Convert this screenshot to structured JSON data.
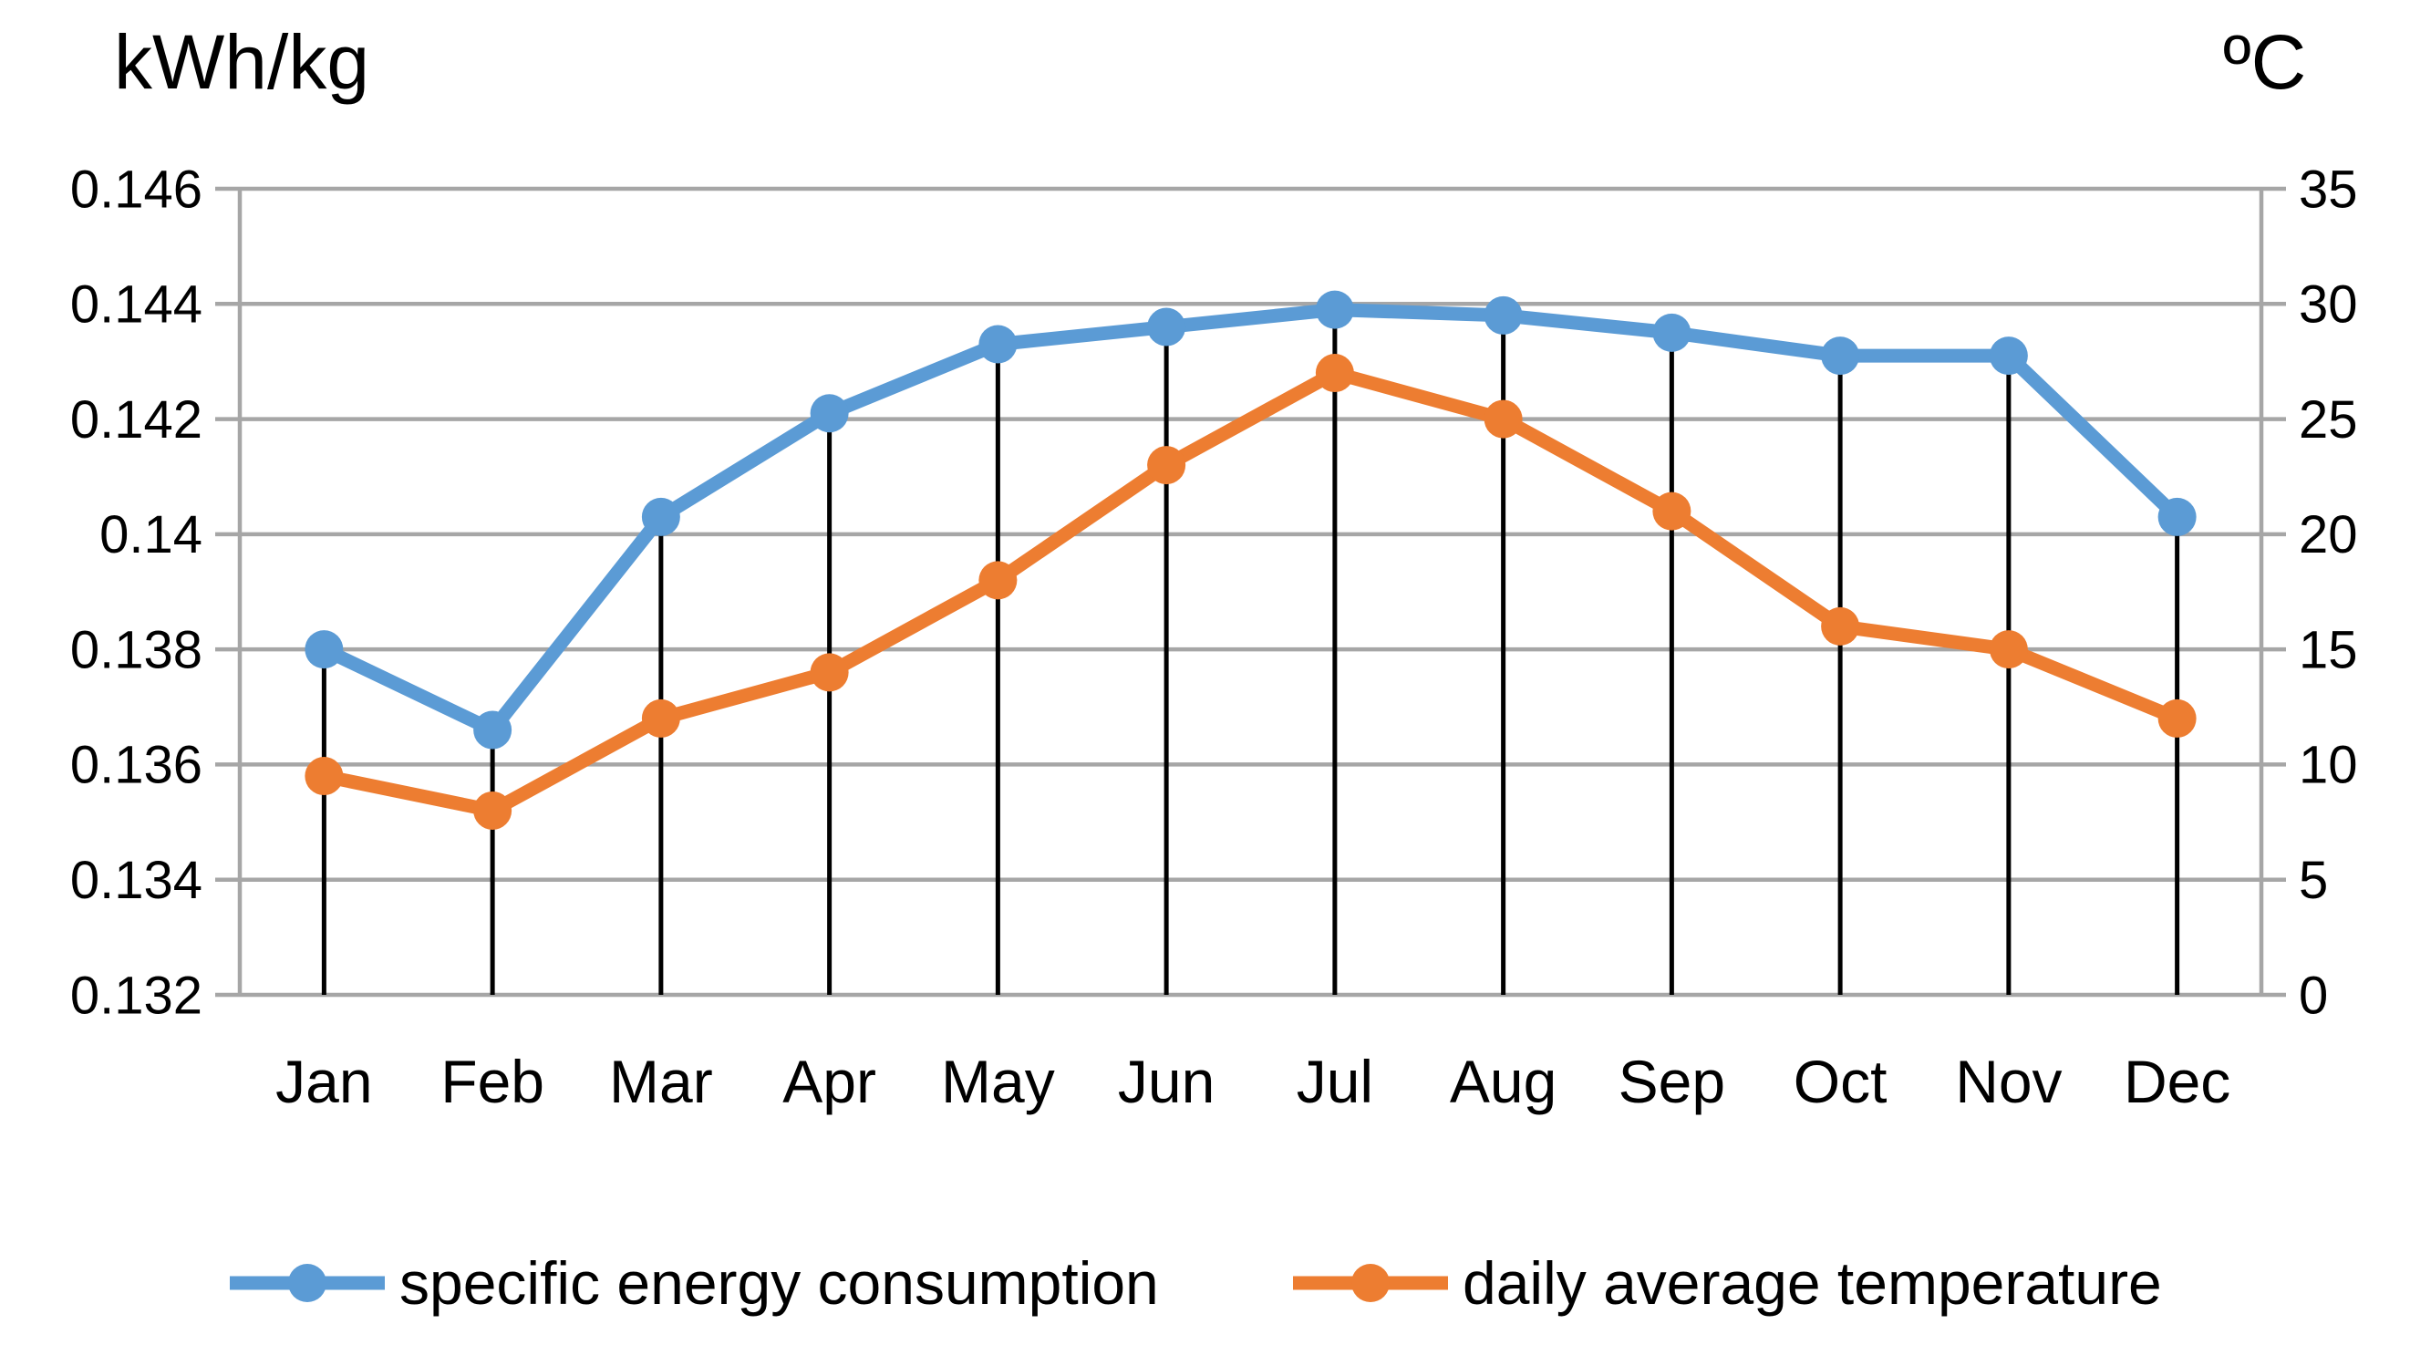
{
  "chart_data": {
    "type": "line",
    "categories": [
      "Jan",
      "Feb",
      "Mar",
      "Apr",
      "May",
      "Jun",
      "Jul",
      "Aug",
      "Sep",
      "Oct",
      "Nov",
      "Dec"
    ],
    "series": [
      {
        "name": "specific energy consumption",
        "axis": "left",
        "color": "#5B9BD5",
        "marker": "circle",
        "values": [
          0.138,
          0.1366,
          0.1403,
          0.1421,
          0.1433,
          0.1436,
          0.1439,
          0.1438,
          0.1435,
          0.1431,
          0.1431,
          0.1403
        ]
      },
      {
        "name": "daily average temperature",
        "axis": "right",
        "color": "#ED7D31",
        "marker": "circle",
        "values": [
          9.5,
          8,
          12,
          14,
          18,
          23,
          27,
          25,
          21,
          16,
          15,
          12
        ]
      }
    ],
    "left_axis": {
      "title": "kWh/kg",
      "min": 0.132,
      "max": 0.146,
      "step": 0.002,
      "tick_labels": [
        "0.146",
        "0.144",
        "0.142",
        "0.14",
        "0.138",
        "0.136",
        "0.134",
        "0.132"
      ]
    },
    "right_axis": {
      "title": "ºC",
      "min": 0,
      "max": 35,
      "step": 5,
      "tick_labels": [
        "35",
        "30",
        "25",
        "20",
        "15",
        "10",
        "5",
        "0"
      ]
    },
    "grid": true,
    "drop_lines": true,
    "legend_position": "bottom",
    "colors": {
      "grid": "#A6A6A6",
      "axis": "#A6A6A6",
      "drop_line": "#000000",
      "text": "#000000",
      "background": "#FFFFFF"
    }
  }
}
